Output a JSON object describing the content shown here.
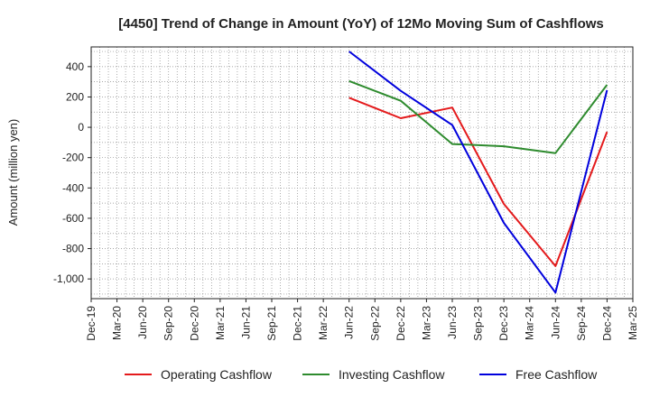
{
  "chart_data": {
    "type": "line",
    "title": "[4450]  Trend of Change in Amount (YoY) of 12Mo Moving Sum of Cashflows",
    "xlabel": "",
    "ylabel": "Amount (million yen)",
    "ylim": [
      -1130,
      530
    ],
    "yticks": [
      400,
      200,
      0,
      -200,
      -400,
      -600,
      -800,
      -1000
    ],
    "ytick_labels": [
      "400",
      "200",
      "0",
      "-200",
      "-400",
      "-600",
      "-800",
      "-1,000"
    ],
    "categories": [
      "Dec-19",
      "Mar-20",
      "Jun-20",
      "Sep-20",
      "Dec-20",
      "Mar-21",
      "Jun-21",
      "Sep-21",
      "Dec-21",
      "Mar-22",
      "Jun-22",
      "Sep-22",
      "Dec-22",
      "Mar-23",
      "Jun-23",
      "Sep-23",
      "Dec-23",
      "Mar-24",
      "Jun-24",
      "Sep-24",
      "Dec-24",
      "Mar-25"
    ],
    "grid": true,
    "legend_position": "bottom",
    "series": [
      {
        "name": "Operating Cashflow",
        "color": "#e41a1c",
        "values": [
          null,
          null,
          null,
          null,
          null,
          null,
          null,
          null,
          null,
          null,
          195,
          null,
          60,
          null,
          130,
          null,
          -505,
          null,
          -915,
          null,
          -30,
          null
        ]
      },
      {
        "name": "Investing Cashflow",
        "color": "#2e8b2e",
        "values": [
          null,
          null,
          null,
          null,
          null,
          null,
          null,
          null,
          null,
          null,
          305,
          null,
          175,
          null,
          -110,
          null,
          -125,
          null,
          -170,
          null,
          280,
          null
        ]
      },
      {
        "name": "Free Cashflow",
        "color": "#0000dd",
        "values": [
          null,
          null,
          null,
          null,
          null,
          null,
          null,
          null,
          null,
          null,
          500,
          null,
          240,
          null,
          15,
          null,
          -630,
          null,
          -1090,
          null,
          245,
          null
        ]
      }
    ]
  }
}
